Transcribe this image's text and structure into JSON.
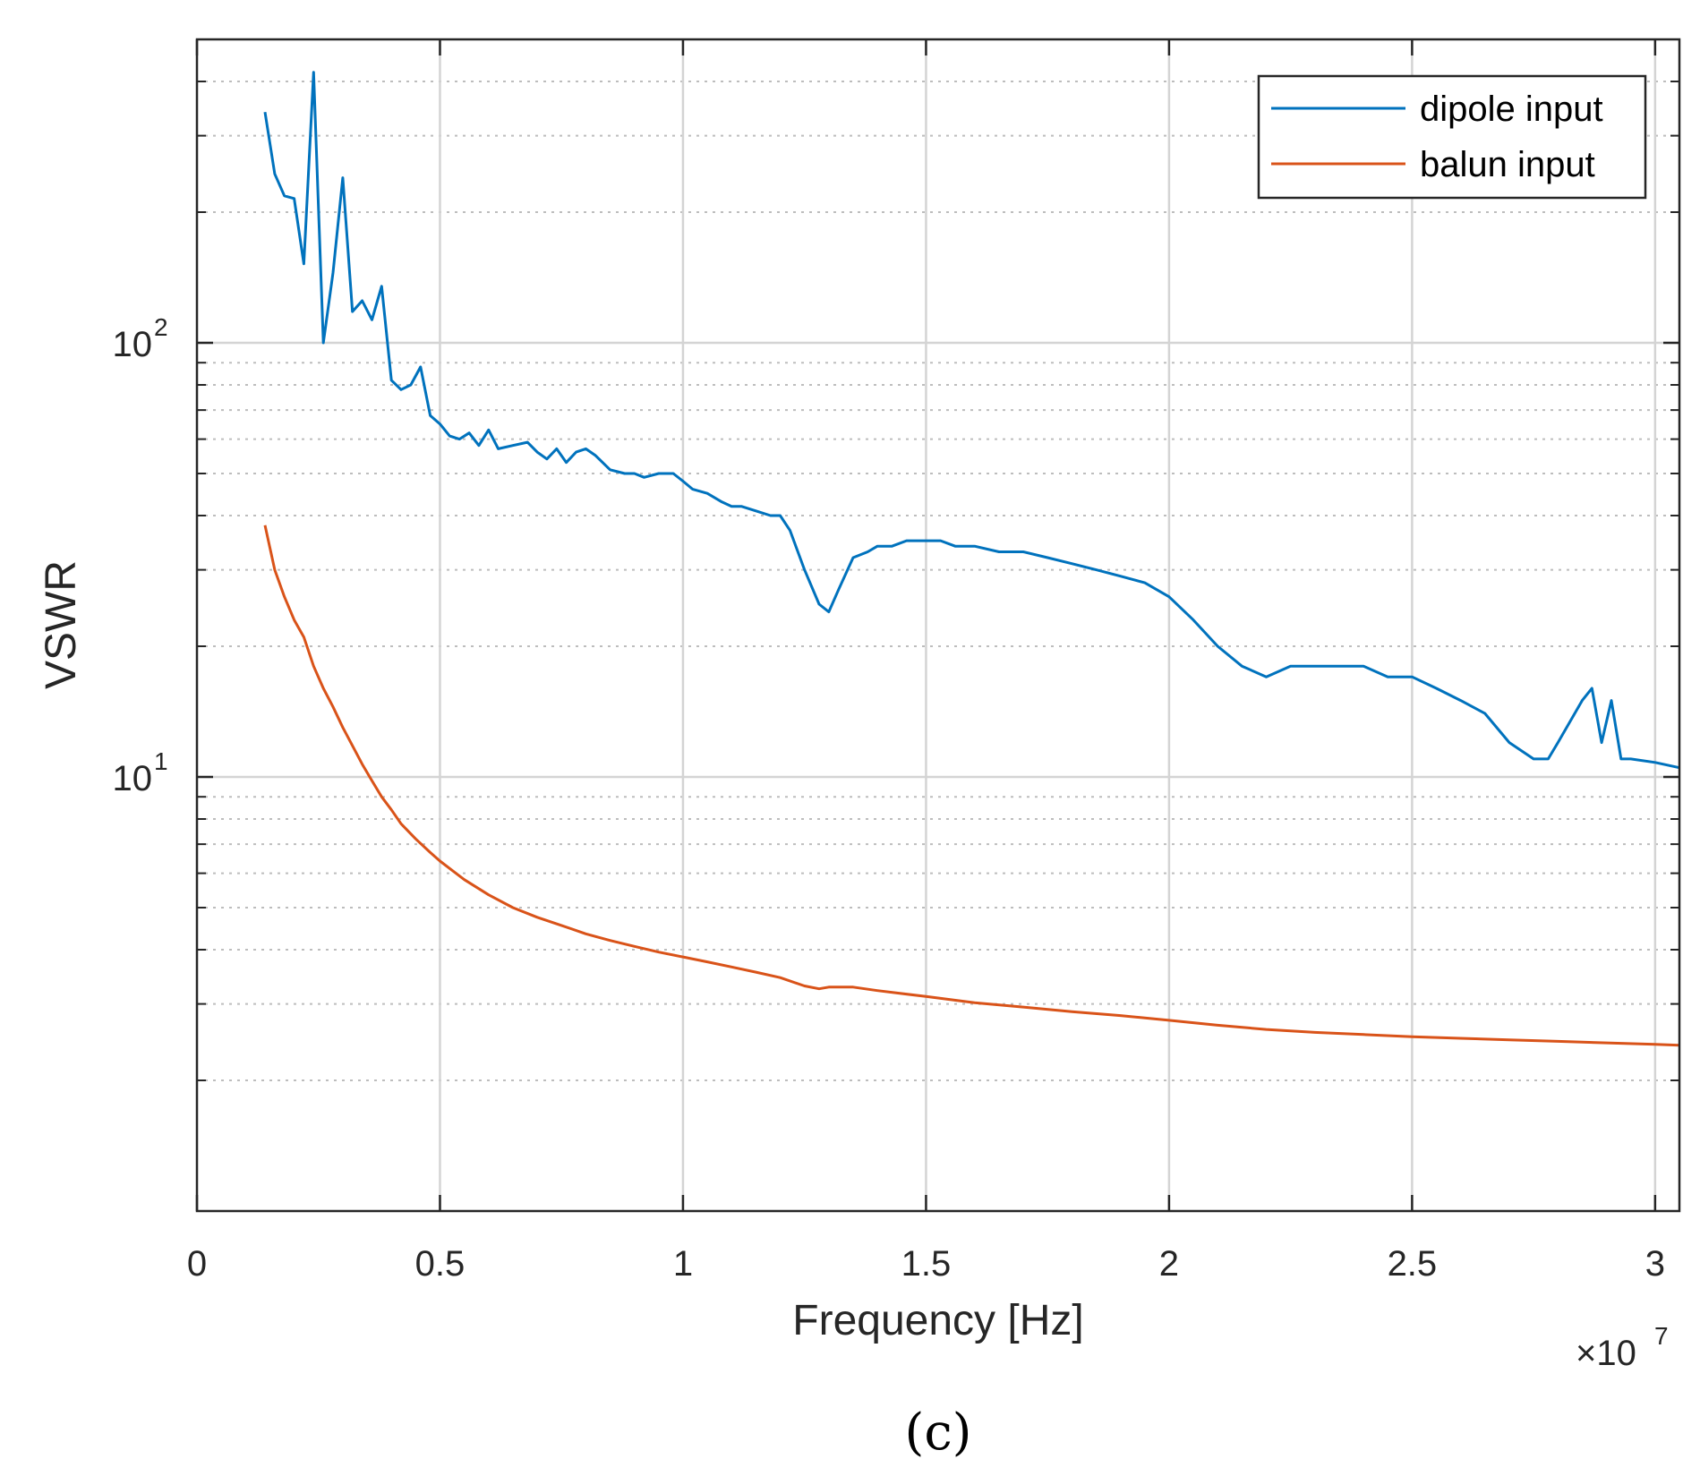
{
  "chart_data": {
    "type": "line",
    "title": "",
    "xlabel": "Frequency [Hz]",
    "ylabel": "VSWR",
    "x_exponent_label": "×10",
    "x_exponent_power": "7",
    "x_scale_factor": 10000000,
    "xlim": [
      0,
      30500000
    ],
    "ylim": [
      1,
      500
    ],
    "yscale": "log",
    "grid": true,
    "legend_position": "top-right",
    "panel_label": "(c)",
    "x_ticks": [
      {
        "value": 0,
        "label": "0"
      },
      {
        "value": 5000000,
        "label": "0.5"
      },
      {
        "value": 10000000,
        "label": "1"
      },
      {
        "value": 15000000,
        "label": "1.5"
      },
      {
        "value": 20000000,
        "label": "2"
      },
      {
        "value": 25000000,
        "label": "2.5"
      },
      {
        "value": 30000000,
        "label": "3"
      }
    ],
    "y_ticks": [
      {
        "value": 10,
        "base": "10",
        "power": "1"
      },
      {
        "value": 100,
        "base": "10",
        "power": "2"
      }
    ],
    "series": [
      {
        "name": "dipole input",
        "color": "#0072BD",
        "x": [
          1.4,
          1.6,
          1.8,
          2.0,
          2.2,
          2.4,
          2.6,
          2.8,
          3.0,
          3.2,
          3.4,
          3.6,
          3.8,
          4.0,
          4.2,
          4.4,
          4.6,
          4.8,
          5.0,
          5.2,
          5.4,
          5.6,
          5.8,
          6.0,
          6.2,
          6.5,
          6.8,
          7.0,
          7.2,
          7.4,
          7.6,
          7.8,
          8.0,
          8.2,
          8.5,
          8.8,
          9.0,
          9.2,
          9.5,
          9.8,
          10.0,
          10.2,
          10.5,
          10.8,
          11.0,
          11.2,
          11.5,
          11.8,
          12.0,
          12.2,
          12.5,
          12.8,
          13.0,
          13.2,
          13.5,
          13.8,
          14.0,
          14.3,
          14.6,
          15.0,
          15.3,
          15.6,
          16.0,
          16.5,
          17.0,
          17.5,
          18.0,
          18.5,
          19.0,
          19.5,
          20.0,
          20.5,
          21.0,
          21.5,
          22.0,
          22.5,
          23.0,
          23.5,
          24.0,
          24.5,
          25.0,
          25.5,
          26.0,
          26.5,
          27.0,
          27.5,
          27.8,
          28.0,
          28.5,
          28.7,
          28.9,
          29.1,
          29.3,
          29.5,
          30.0,
          30.5
        ],
        "y": [
          340,
          245,
          218,
          215,
          152,
          420,
          100,
          145,
          240,
          118,
          125,
          113,
          135,
          82,
          78,
          80,
          88,
          68,
          65,
          61,
          60,
          62,
          58,
          63,
          57,
          58,
          59,
          56,
          54,
          57,
          53,
          56,
          57,
          55,
          51,
          50,
          50,
          49,
          50,
          50,
          48,
          46,
          45,
          43,
          42,
          42,
          41,
          40,
          40,
          37,
          30,
          25,
          24,
          27,
          32,
          33,
          34,
          34,
          35,
          35,
          35,
          34,
          34,
          33,
          33,
          32,
          31,
          30,
          29,
          28,
          26,
          23,
          20,
          18,
          17,
          18,
          18,
          18,
          18,
          17,
          17,
          16,
          15,
          14,
          12,
          11,
          11,
          12,
          15,
          16,
          12,
          15,
          11,
          11,
          10.8,
          10.5
        ]
      },
      {
        "name": "balun input",
        "color": "#D95319",
        "x": [
          1.4,
          1.6,
          1.8,
          2.0,
          2.2,
          2.4,
          2.6,
          2.8,
          3.0,
          3.2,
          3.4,
          3.6,
          3.8,
          4.0,
          4.2,
          4.5,
          4.8,
          5.0,
          5.5,
          6.0,
          6.5,
          7.0,
          7.5,
          8.0,
          8.5,
          9.0,
          9.5,
          10.0,
          10.5,
          11.0,
          11.5,
          12.0,
          12.5,
          12.8,
          13.0,
          13.5,
          14.0,
          15.0,
          16.0,
          17.0,
          18.0,
          19.0,
          20.0,
          21.0,
          22.0,
          23.0,
          24.0,
          25.0,
          26.0,
          27.0,
          28.0,
          29.0,
          30.0,
          30.5
        ],
        "y": [
          38,
          30,
          26,
          23,
          21,
          18,
          16,
          14.5,
          13,
          11.8,
          10.7,
          9.8,
          9.0,
          8.4,
          7.8,
          7.2,
          6.7,
          6.4,
          5.8,
          5.35,
          5.0,
          4.75,
          4.55,
          4.35,
          4.2,
          4.07,
          3.95,
          3.85,
          3.75,
          3.65,
          3.55,
          3.45,
          3.3,
          3.25,
          3.28,
          3.28,
          3.22,
          3.12,
          3.02,
          2.95,
          2.88,
          2.82,
          2.75,
          2.68,
          2.62,
          2.58,
          2.55,
          2.52,
          2.5,
          2.48,
          2.46,
          2.44,
          2.42,
          2.41
        ]
      }
    ]
  }
}
